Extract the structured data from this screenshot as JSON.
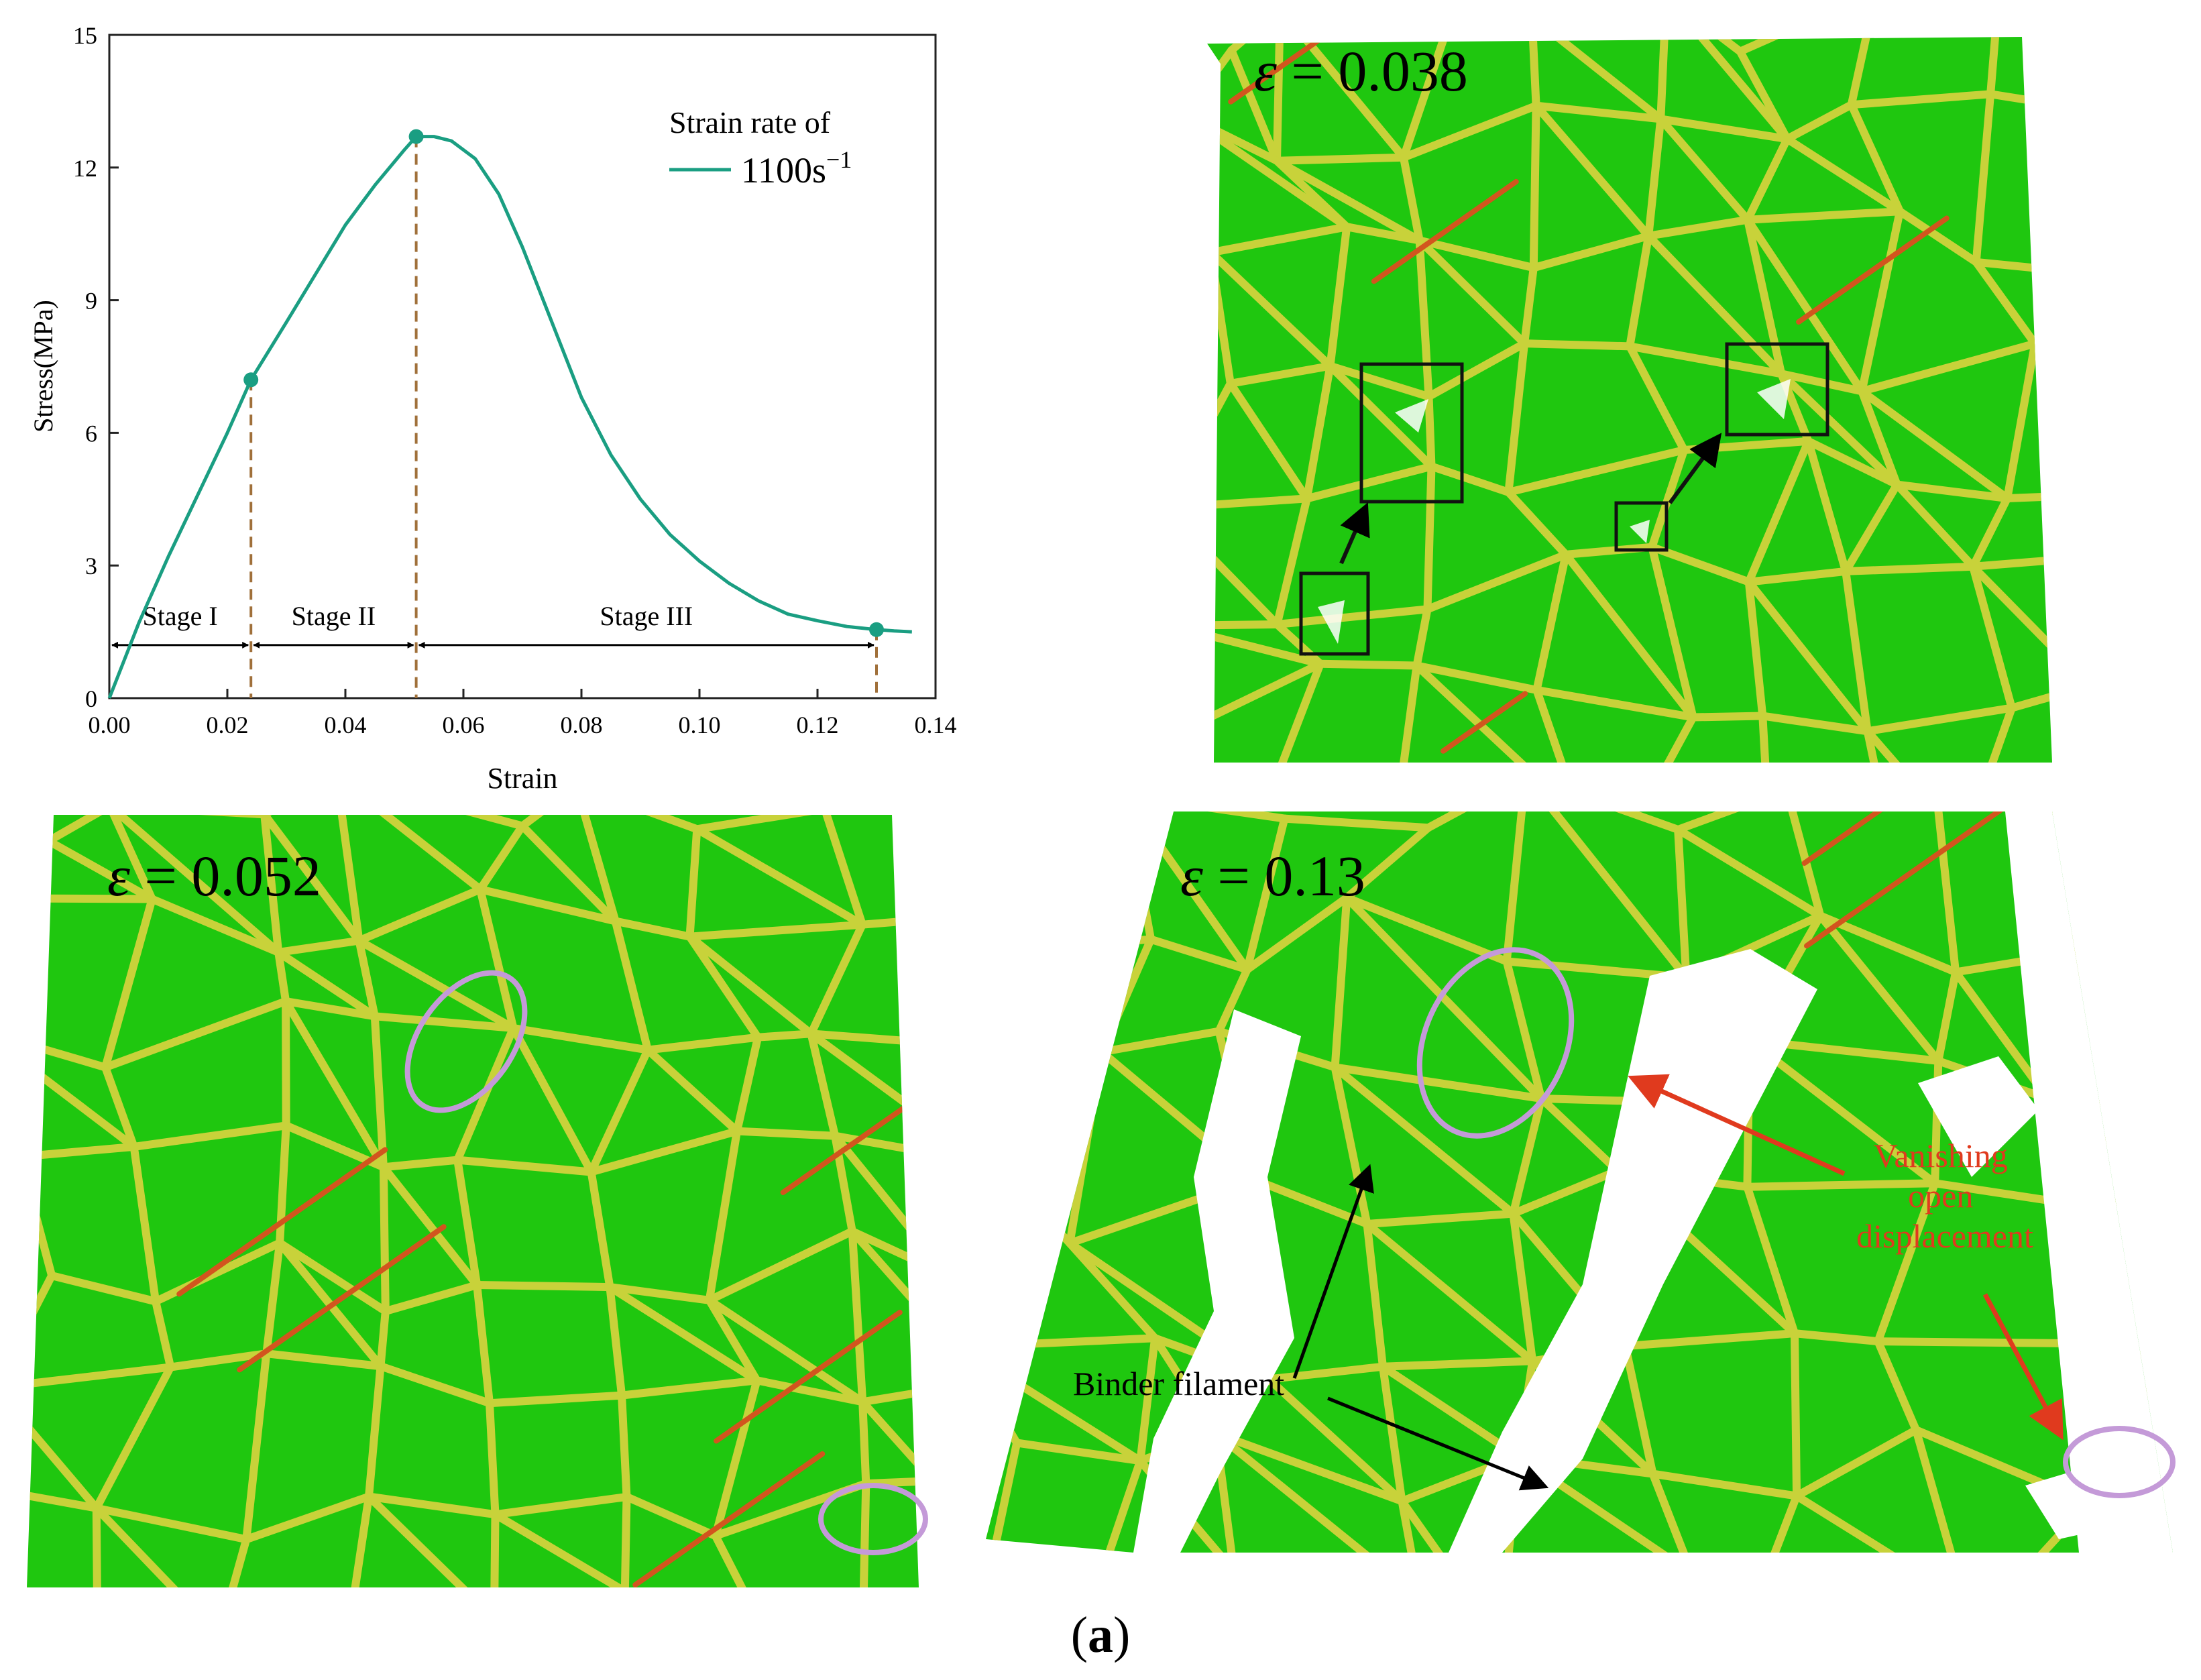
{
  "chart_data": {
    "type": "line",
    "xlabel": "Strain",
    "ylabel": "Stress(MPa)",
    "xlim": [
      0.0,
      0.14
    ],
    "ylim": [
      0,
      15
    ],
    "xticks": [
      0.0,
      0.02,
      0.04,
      0.06,
      0.08,
      0.1,
      0.12,
      0.14
    ],
    "xtick_labels": [
      "0.00",
      "0.02",
      "0.04",
      "0.06",
      "0.08",
      "0.10",
      "0.12",
      "0.14"
    ],
    "yticks": [
      0,
      3,
      6,
      9,
      12,
      15
    ],
    "ytick_labels": [
      "0",
      "3",
      "6",
      "9",
      "12",
      "15"
    ],
    "legend": {
      "title": "Strain rate of",
      "entry": "1100s",
      "entry_exp": "−1",
      "placement": "top-right"
    },
    "series": [
      {
        "name": "1100s−1",
        "color": "#1a9e82",
        "x": [
          0.0,
          0.005,
          0.01,
          0.015,
          0.02,
          0.024,
          0.03,
          0.035,
          0.04,
          0.045,
          0.05,
          0.052,
          0.055,
          0.058,
          0.062,
          0.066,
          0.07,
          0.075,
          0.08,
          0.085,
          0.09,
          0.095,
          0.1,
          0.105,
          0.11,
          0.115,
          0.12,
          0.125,
          0.13,
          0.133,
          0.136
        ],
        "y": [
          0.0,
          1.7,
          3.2,
          4.6,
          6.0,
          7.2,
          8.5,
          9.6,
          10.7,
          11.6,
          12.4,
          12.7,
          12.7,
          12.6,
          12.2,
          11.4,
          10.2,
          8.5,
          6.8,
          5.5,
          4.5,
          3.7,
          3.1,
          2.6,
          2.2,
          1.9,
          1.75,
          1.62,
          1.55,
          1.52,
          1.5
        ]
      }
    ],
    "markers": [
      {
        "x": 0.024,
        "y": 7.2
      },
      {
        "x": 0.052,
        "y": 12.7
      },
      {
        "x": 0.13,
        "y": 1.55
      }
    ],
    "stage_boundaries": [
      0.024,
      0.052,
      0.13
    ],
    "stages": [
      {
        "label": "Stage I",
        "from": 0.0,
        "to": 0.024
      },
      {
        "label": "Stage II",
        "from": 0.024,
        "to": 0.052
      },
      {
        "label": "Stage III",
        "from": 0.052,
        "to": 0.13
      }
    ],
    "stage_arrow_y": 1.2
  },
  "panels": {
    "p038": {
      "label_sym": "ε",
      "label_val": " = 0.038"
    },
    "p052": {
      "label_sym": "ε",
      "label_val": " = 0.052"
    },
    "p013": {
      "label_sym": "ε",
      "label_val": " = 0.13"
    }
  },
  "annotations": {
    "vanishing": [
      "Vanishing",
      "open",
      "displacement"
    ],
    "binder": "Binder filament"
  },
  "caption": {
    "open": "(",
    "letter": "a",
    "close": ")"
  },
  "colors": {
    "grain": "#1fc70f",
    "boundary": "#c8d23a",
    "crack": "#d2551e",
    "ellipse": "#c49ad8",
    "arrow_red": "#e03a1e"
  }
}
